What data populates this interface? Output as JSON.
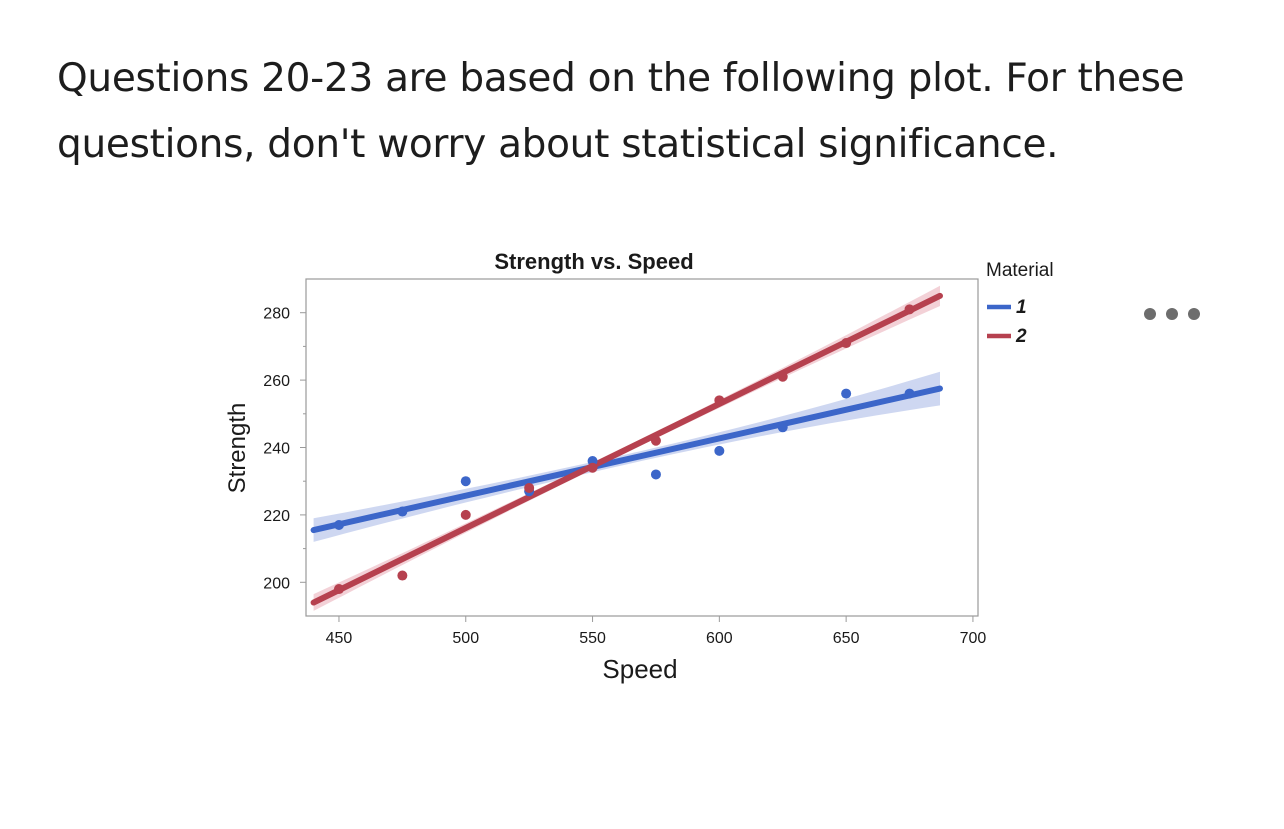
{
  "question_text": "Questions 20-23 are based on the following plot. For these questions, don't worry about statistical significance.",
  "more_menu": {
    "icon": "more-horizontal-icon"
  },
  "colors": {
    "series_1": "#3c66c9",
    "series_1_band": "#aebde8",
    "series_2": "#b6414f",
    "series_2_band": "#ebb3bc",
    "frame": "#9a9a9a",
    "text": "#1a1a1a"
  },
  "chart_data": {
    "type": "scatter",
    "title": "Strength vs. Speed",
    "xlabel": "Speed",
    "ylabel": "Strength",
    "xlim": [
      437,
      702
    ],
    "ylim": [
      190,
      290
    ],
    "xticks": [
      450,
      500,
      550,
      600,
      650,
      700
    ],
    "yticks": [
      200,
      220,
      240,
      260,
      280
    ],
    "grid": false,
    "legend": {
      "title": "Material",
      "placement": "outside-right"
    },
    "series": [
      {
        "name": "1",
        "points": [
          {
            "x": 450,
            "y": 217
          },
          {
            "x": 475,
            "y": 221
          },
          {
            "x": 500,
            "y": 230
          },
          {
            "x": 525,
            "y": 227
          },
          {
            "x": 550,
            "y": 236
          },
          {
            "x": 575,
            "y": 232
          },
          {
            "x": 600,
            "y": 239
          },
          {
            "x": 625,
            "y": 246
          },
          {
            "x": 650,
            "y": 256
          },
          {
            "x": 675,
            "y": 256
          }
        ],
        "fit": {
          "x": [
            440,
            687
          ],
          "y": [
            215.5,
            257.5
          ]
        },
        "band_halfwidth": {
          "start": 3.5,
          "mid": 1.5,
          "end": 5
        }
      },
      {
        "name": "2",
        "points": [
          {
            "x": 450,
            "y": 198
          },
          {
            "x": 475,
            "y": 202
          },
          {
            "x": 500,
            "y": 220
          },
          {
            "x": 525,
            "y": 228
          },
          {
            "x": 550,
            "y": 234
          },
          {
            "x": 575,
            "y": 242
          },
          {
            "x": 600,
            "y": 254
          },
          {
            "x": 625,
            "y": 261
          },
          {
            "x": 650,
            "y": 271
          },
          {
            "x": 675,
            "y": 281
          }
        ],
        "fit": {
          "x": [
            440,
            687
          ],
          "y": [
            194,
            285
          ]
        },
        "band_halfwidth": {
          "start": 2.5,
          "mid": 1,
          "end": 3
        }
      }
    ]
  }
}
